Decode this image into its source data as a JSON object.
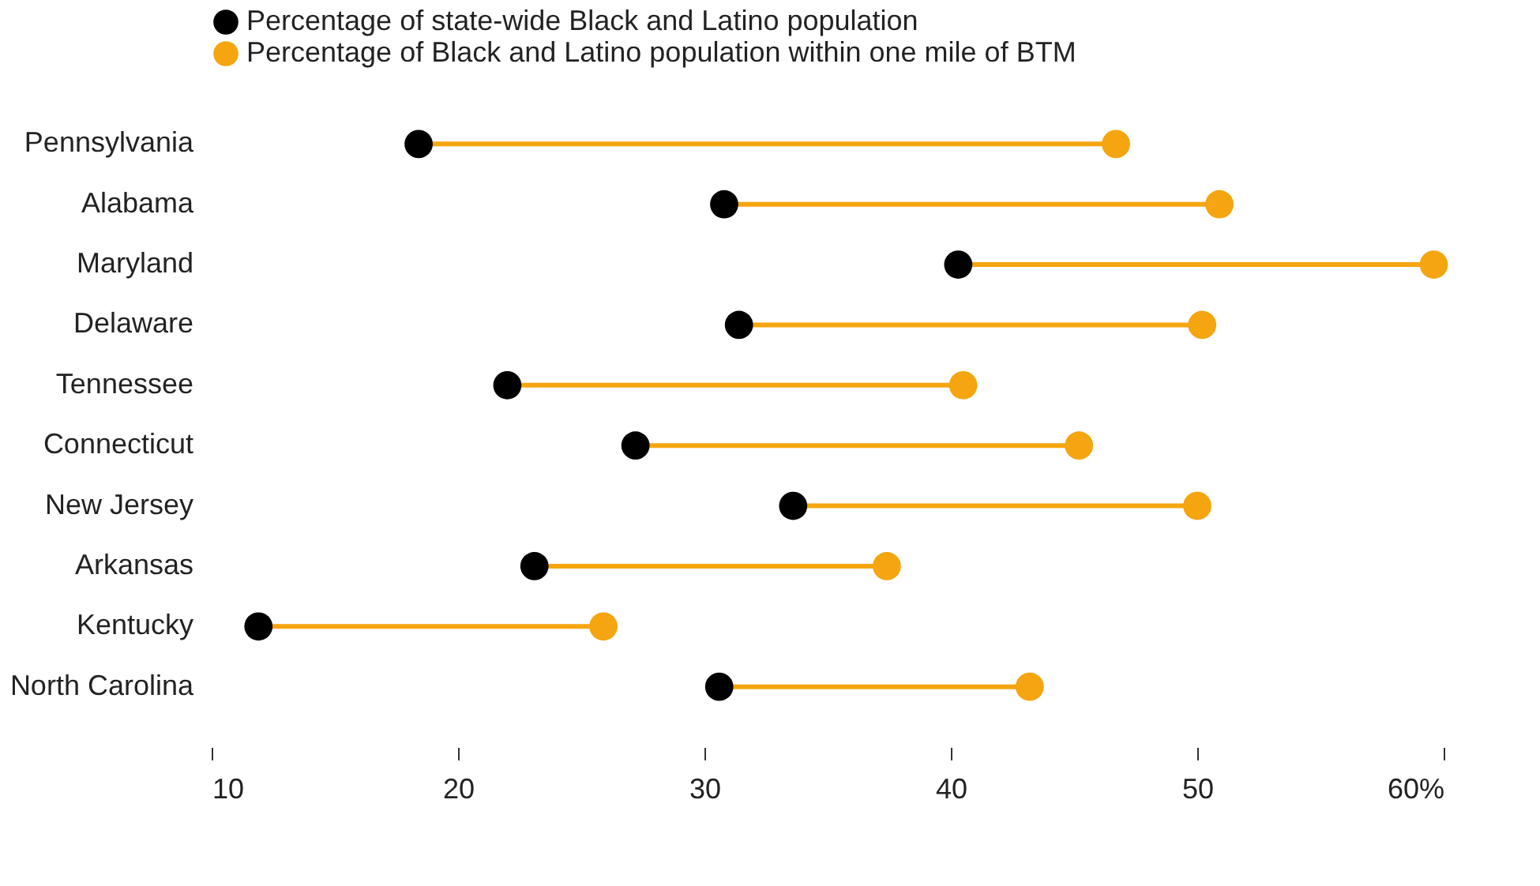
{
  "chart_data": {
    "type": "scatter",
    "orientation": "horizontal",
    "marker": "circle",
    "legend": "top left",
    "grid": false,
    "categories": [
      "Pennsylvania",
      "Alabama",
      "Maryland",
      "Delaware",
      "Tennessee",
      "Connecticut",
      "New Jersey",
      "Arkansas",
      "Kentucky",
      "North Carolina"
    ],
    "series": [
      {
        "name": "Percentage of state-wide Black and Latino population",
        "color": "#000000",
        "values": [
          18.4,
          30.8,
          40.3,
          31.4,
          22.0,
          27.2,
          33.6,
          23.1,
          11.9,
          30.6
        ]
      },
      {
        "name": "Percentage of Black and Latino population within one mile of BTM",
        "color": "#f5a50f",
        "values": [
          46.7,
          50.9,
          59.6,
          50.2,
          40.5,
          45.2,
          50.0,
          37.4,
          25.9,
          43.2
        ]
      }
    ],
    "xlim": [
      10,
      60
    ],
    "xticks": [
      10,
      20,
      30,
      40,
      50,
      {
        "value": 60,
        "label": "60%"
      }
    ]
  }
}
